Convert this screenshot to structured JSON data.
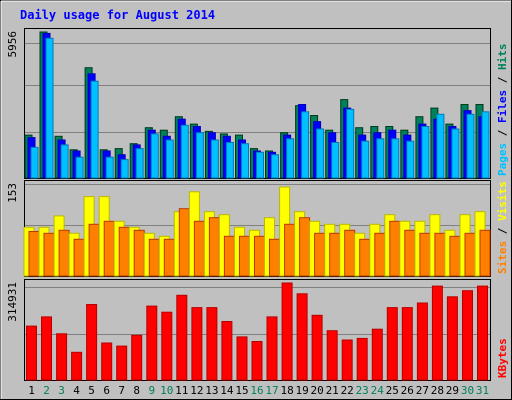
{
  "chart_data": {
    "type": "bar",
    "title": "Daily usage for August 2014",
    "categories": [
      "1",
      "2",
      "3",
      "4",
      "5",
      "6",
      "7",
      "8",
      "9",
      "10",
      "11",
      "12",
      "13",
      "14",
      "15",
      "16",
      "17",
      "18",
      "19",
      "20",
      "21",
      "22",
      "23",
      "24",
      "25",
      "26",
      "27",
      "28",
      "29",
      "30",
      "31"
    ],
    "weekend_days": [
      "2",
      "3",
      "9",
      "10",
      "16",
      "17",
      "23",
      "24",
      "30",
      "31"
    ],
    "panels": [
      {
        "name": "hits-files-pages",
        "max_label": "5956",
        "ylim": [
          0,
          5956
        ],
        "labels": [
          {
            "text": "Pages",
            "color": "#00c0ff"
          },
          {
            "text": " / ",
            "color": "#000000"
          },
          {
            "text": "Files",
            "color": "#0000ff"
          },
          {
            "text": " / ",
            "color": "#000000"
          },
          {
            "text": "Hits",
            "color": "#00805c"
          }
        ],
        "series": [
          {
            "name": "Hits",
            "color": "#00805c",
            "values": [
              1750,
              5956,
              1700,
              1150,
              4500,
              1150,
              1200,
              1400,
              2050,
              1950,
              2500,
              2200,
              1900,
              1800,
              1750,
              1200,
              1100,
              1850,
              2950,
              2550,
              1950,
              3200,
              2050,
              2100,
              2100,
              1950,
              2500,
              2850,
              2200,
              3000,
              3000
            ]
          },
          {
            "name": "Files",
            "color": "#0000ff",
            "values": [
              1650,
              5900,
              1550,
              1100,
              4250,
              1100,
              950,
              1350,
              1950,
              1700,
              2400,
              2100,
              1850,
              1700,
              1550,
              1100,
              1050,
              1750,
              3000,
              2300,
              1850,
              2850,
              1750,
              1850,
              1950,
              1750,
              2200,
              2400,
              2100,
              2750,
              2500
            ]
          },
          {
            "name": "Pages",
            "color": "#00c0ff",
            "values": [
              1250,
              5700,
              1350,
              850,
              3950,
              850,
              750,
              1200,
              1800,
              1550,
              2150,
              1850,
              1550,
              1450,
              1400,
              1050,
              950,
              1600,
              2700,
              2000,
              1450,
              2800,
              1500,
              1600,
              1600,
              1500,
              2100,
              2600,
              2000,
              2600,
              2700
            ]
          }
        ]
      },
      {
        "name": "visits-sites",
        "max_label": "153",
        "ylim": [
          0,
          153
        ],
        "labels": [
          {
            "text": "Sites",
            "color": "#ff8000"
          },
          {
            "text": " / ",
            "color": "#000000"
          },
          {
            "text": "Visits",
            "color": "#ffff00"
          }
        ],
        "series": [
          {
            "name": "Visits",
            "color": "#ffff00",
            "values": [
              81,
              81,
              100,
              71,
              132,
              132,
              91,
              81,
              71,
              66,
              107,
              140,
              107,
              102,
              81,
              76,
              97,
              148,
              107,
              91,
              86,
              86,
              71,
              86,
              102,
              91,
              91,
              102,
              76,
              102,
              107
            ]
          },
          {
            "name": "Sites",
            "color": "#ff8000",
            "values": [
              74,
              71,
              76,
              61,
              86,
              91,
              81,
              76,
              61,
              61,
              112,
              91,
              97,
              66,
              66,
              66,
              61,
              86,
              97,
              71,
              71,
              76,
              61,
              71,
              91,
              76,
              71,
              71,
              66,
              71,
              76
            ]
          }
        ]
      },
      {
        "name": "kbytes",
        "max_label": "314931",
        "ylim": [
          0,
          314931
        ],
        "labels": [
          {
            "text": "KBytes",
            "color": "#ff0000"
          }
        ],
        "series": [
          {
            "name": "KBytes",
            "color": "#ff0000",
            "values": [
              175000,
              205000,
              150000,
              90000,
              245000,
              120000,
              110000,
              145000,
              240000,
              220000,
              275000,
              235000,
              235000,
              190000,
              140000,
              125000,
              205000,
              315000,
              280000,
              210000,
              160000,
              130000,
              135000,
              165000,
              235000,
              235000,
              250000,
              305000,
              270000,
              290000,
              305000
            ]
          }
        ]
      }
    ]
  }
}
